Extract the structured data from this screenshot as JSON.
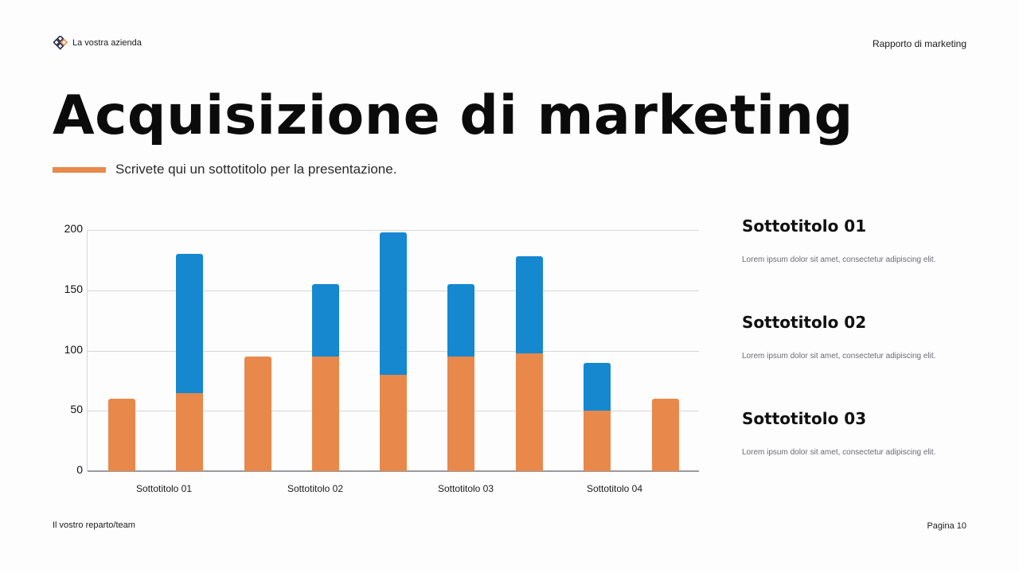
{
  "header": {
    "company": "La vostra azienda",
    "logo_icon": "diamond-grid-logo-icon",
    "report_title": "Rapporto di marketing"
  },
  "title": "Acquisizione di marketing",
  "subtitle": "Scrivete qui un sottotitolo per la presentazione.",
  "colors": {
    "accent": "#e8894b",
    "series_orange": "#e8894b",
    "series_blue": "#1588d0",
    "background": "#fdfdfe"
  },
  "chart_data": {
    "type": "bar",
    "stacked": true,
    "title": "",
    "xlabel": "",
    "ylabel": "",
    "ylim": [
      0,
      200
    ],
    "yticks": [
      0,
      50,
      100,
      150,
      200
    ],
    "grid": true,
    "legend": "none",
    "categories": [
      "Sottotitolo 01",
      "Sottotitolo 02",
      "Sottotitolo 03",
      "Sottotitolo 04"
    ],
    "bar_count": 9,
    "series": [
      {
        "name": "Serie arancione",
        "color": "#e8894b",
        "values": [
          60,
          65,
          95,
          95,
          80,
          95,
          98,
          50,
          60
        ]
      },
      {
        "name": "Serie blu",
        "color": "#1588d0",
        "values": [
          0,
          115,
          0,
          60,
          118,
          60,
          80,
          40,
          0
        ]
      }
    ],
    "totals": [
      60,
      180,
      95,
      155,
      198,
      155,
      178,
      90,
      60
    ]
  },
  "sidebar": {
    "items": [
      {
        "title": "Sottotitolo 01",
        "desc": "Lorem ipsum dolor sit amet, consectetur adipiscing elit."
      },
      {
        "title": "Sottotitolo 02",
        "desc": "Lorem ipsum dolor sit amet, consectetur adipiscing elit."
      },
      {
        "title": "Sottotitolo 03",
        "desc": "Lorem ipsum dolor sit amet, consectetur adipiscing elit."
      }
    ]
  },
  "footer": {
    "team": "Il vostro reparto/team",
    "page": "Pagina 10"
  }
}
